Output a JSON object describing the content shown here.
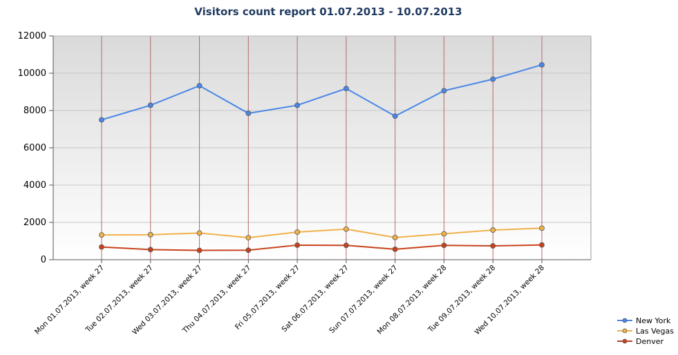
{
  "chart_data": {
    "type": "line",
    "title": "Visitors count report 01.07.2013 - 10.07.2013",
    "xlabel": "",
    "ylabel": "",
    "ylim": [
      0,
      12000
    ],
    "yticks": [
      "0",
      "2000",
      "4000",
      "6000",
      "8000",
      "10000",
      "12000"
    ],
    "categories": [
      "Mon 01.07.2013,  week 27",
      "Tue 02.07.2013,  week 27",
      "Wed 03.07.2013,  week 27",
      "Thu 04.07.2013,  week 27",
      "Fri 05.07.2013,  week 27",
      "Sat 06.07.2013,  week 27",
      "Sun 07.07.2013,  week 27",
      "Mon 08.07.2013,  week 28",
      "Tue 09.07.2013,  week 28",
      "Wed 10.07.2013,  week 28"
    ],
    "series": [
      {
        "name": "New York",
        "color": "#4a86e8",
        "values": [
          7500,
          8280,
          9330,
          7850,
          8280,
          9180,
          7700,
          9060,
          9680,
          10450
        ]
      },
      {
        "name": "Las Vegas",
        "color": "#f0b14a",
        "values": [
          1330,
          1340,
          1430,
          1180,
          1480,
          1640,
          1190,
          1390,
          1590,
          1690
        ]
      },
      {
        "name": "Denver",
        "color": "#c9411b",
        "values": [
          680,
          540,
          500,
          510,
          780,
          770,
          560,
          770,
          740,
          790
        ]
      }
    ],
    "grid": true,
    "legend": "bottom-right"
  }
}
